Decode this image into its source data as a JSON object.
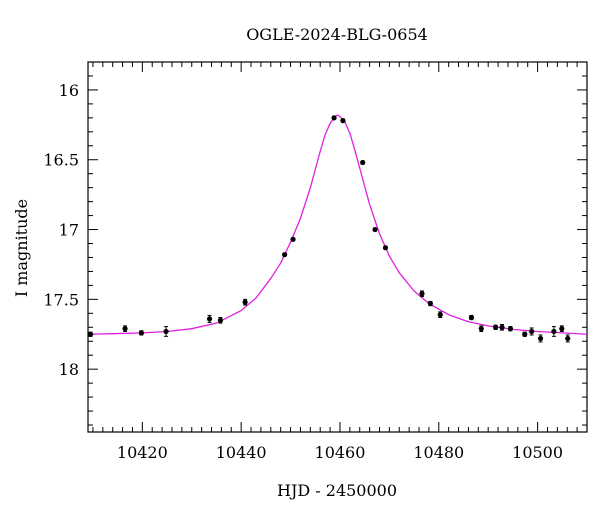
{
  "chart_data": {
    "type": "scatter",
    "title": "OGLE-2024-BLG-0654",
    "xlabel": "HJD - 2450000",
    "ylabel": "I magnitude",
    "xlim": [
      10409,
      10510
    ],
    "ylim": [
      18.45,
      15.8
    ],
    "y_inverted": true,
    "grid": false,
    "x_ticks": [
      10420,
      10440,
      10460,
      10480,
      10500
    ],
    "y_ticks": [
      16,
      16.5,
      17,
      17.5,
      18
    ],
    "x_tick_labels": [
      "10420",
      "10440",
      "10460",
      "10480",
      "10500"
    ],
    "y_tick_labels": [
      "16",
      "16.5",
      "17",
      "17.5",
      "18"
    ],
    "colors": {
      "points": "#000000",
      "model": "#e020e0"
    },
    "series": [
      {
        "kind": "points",
        "x": [
          10409.5,
          10416.5,
          10419.8,
          10424.8,
          10433.6,
          10435.8,
          10440.8,
          10448.8,
          10450.5,
          10458.8,
          10460.6,
          10464.6,
          10467.1,
          10469.2,
          10476.6,
          10478.3,
          10480.3,
          10486.6,
          10488.6,
          10491.5,
          10492.8,
          10494.5,
          10497.4,
          10498.8,
          10500.6,
          10503.3,
          10504.9,
          10506.1
        ],
        "y": [
          17.75,
          17.71,
          17.74,
          17.73,
          17.64,
          17.65,
          17.52,
          17.18,
          17.07,
          16.2,
          16.22,
          16.52,
          17.0,
          17.13,
          17.46,
          17.53,
          17.61,
          17.63,
          17.71,
          17.7,
          17.7,
          17.71,
          17.75,
          17.73,
          17.78,
          17.73,
          17.71,
          17.78
        ],
        "yerr": [
          0.015,
          0.02,
          0.015,
          0.035,
          0.025,
          0.02,
          0.02,
          0.01,
          0.01,
          0.01,
          0.01,
          0.01,
          0.01,
          0.01,
          0.02,
          0.015,
          0.02,
          0.015,
          0.02,
          0.015,
          0.02,
          0.015,
          0.015,
          0.025,
          0.025,
          0.035,
          0.02,
          0.025
        ]
      },
      {
        "kind": "model",
        "x": [
          10409,
          10415,
          10420,
          10425,
          10430,
          10435,
          10440,
          10443,
          10446,
          10448,
          10450,
          10452,
          10454,
          10455,
          10456,
          10457,
          10458,
          10459,
          10459.5,
          10460,
          10461,
          10462,
          10463,
          10464,
          10465,
          10466,
          10468,
          10470,
          10472,
          10475,
          10478,
          10482,
          10486,
          10490,
          10495,
          10500,
          10505,
          10510
        ],
        "y": [
          17.75,
          17.745,
          17.74,
          17.73,
          17.71,
          17.67,
          17.58,
          17.49,
          17.35,
          17.24,
          17.09,
          16.92,
          16.7,
          16.57,
          16.44,
          16.32,
          16.24,
          16.19,
          16.18,
          16.19,
          16.23,
          16.31,
          16.43,
          16.56,
          16.69,
          16.82,
          17.03,
          17.19,
          17.31,
          17.44,
          17.53,
          17.61,
          17.66,
          17.69,
          17.715,
          17.73,
          17.74,
          17.75
        ]
      }
    ]
  }
}
